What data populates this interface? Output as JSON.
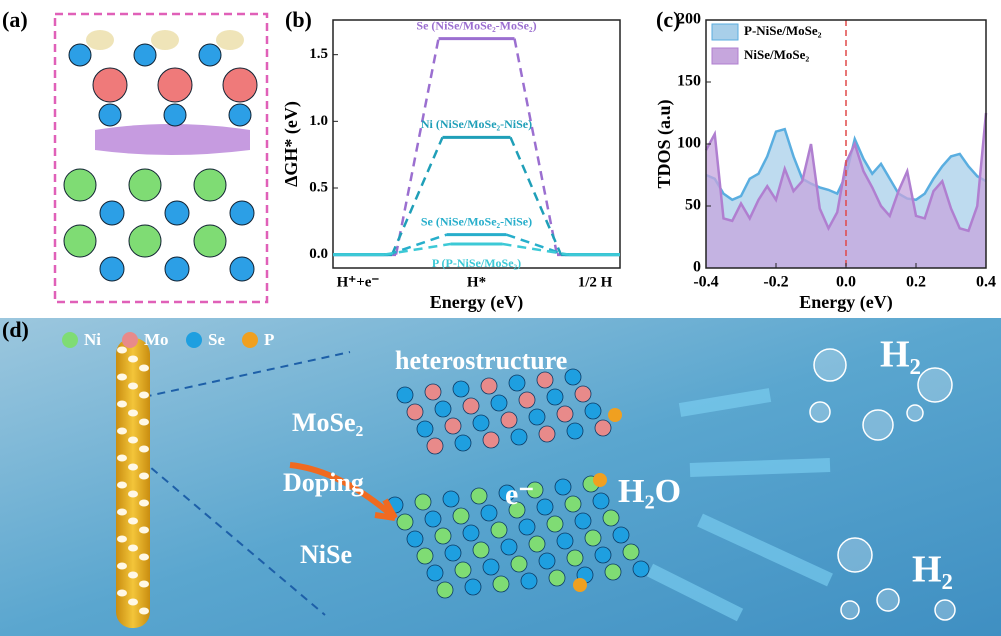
{
  "panels": [
    "(a)",
    "(b)",
    "(c)",
    "(d)"
  ],
  "chart_data": [
    {
      "type": "energy_levels",
      "categories": [
        "H⁺+e⁻",
        "H*",
        "1/2 H"
      ],
      "xlabel": "Energy (eV)",
      "ylabel": "ΔGH* (eV)",
      "ylim": [
        -0.1,
        1.76
      ],
      "yticks": [
        {
          "value": 0,
          "label": "0.0"
        },
        0.5,
        {
          "value": 1,
          "label": "1.0"
        },
        1.5
      ],
      "series": [
        {
          "name": "Se (NiSe/MoSe₂-MoSe₂)",
          "color": "#9b6fd0",
          "values": [
            0,
            1.62,
            0
          ]
        },
        {
          "name": "Ni (NiSe/MoSe₂-NiSe)",
          "color": "#1f9fb8",
          "values": [
            0,
            0.88,
            0
          ]
        },
        {
          "name": "Se (NiSe/MoSe₂-NiSe)",
          "color": "#27aecb",
          "values": [
            0,
            0.15,
            0
          ]
        },
        {
          "name": "P (P-NiSe/MoSe₂)",
          "color": "#3cc9d6",
          "values": [
            0,
            0.08,
            0
          ]
        }
      ]
    },
    {
      "type": "area",
      "xlabel": "Energy (eV)",
      "ylabel": "TDOS (a.u)",
      "xlim": [
        -0.4,
        0.4
      ],
      "ylim": [
        0,
        200
      ],
      "xticks": [
        -0.4,
        -0.2,
        {
          "value": 0,
          "label": "0.0"
        },
        0.2,
        0.4
      ],
      "yticks": [
        0,
        50,
        100,
        150,
        200
      ],
      "vline": {
        "x": 0,
        "color": "#e04848"
      },
      "legend": "upper left",
      "x": [
        -0.4,
        -0.375,
        -0.35,
        -0.325,
        -0.3,
        -0.275,
        -0.25,
        -0.225,
        -0.2,
        -0.175,
        -0.15,
        -0.125,
        -0.1,
        -0.075,
        -0.05,
        -0.025,
        0,
        0.025,
        0.05,
        0.075,
        0.1,
        0.125,
        0.15,
        0.175,
        0.2,
        0.225,
        0.25,
        0.275,
        0.3,
        0.325,
        0.35,
        0.375,
        0.4
      ],
      "series": [
        {
          "name": "P-NiSe/MoSe₂",
          "color": "#5aaee0",
          "fill": "#a8cfe9",
          "values": [
            75,
            72,
            60,
            55,
            58,
            72,
            76,
            90,
            110,
            112,
            90,
            72,
            68,
            65,
            63,
            60,
            75,
            104,
            88,
            76,
            84,
            72,
            60,
            56,
            55,
            60,
            72,
            82,
            90,
            92,
            82,
            74,
            70
          ]
        },
        {
          "name": "NiSe/MoSe₂",
          "color": "#b07fd0",
          "fill": "#c6a6dd",
          "values": [
            95,
            108,
            40,
            38,
            52,
            40,
            55,
            66,
            55,
            80,
            62,
            70,
            100,
            48,
            32,
            45,
            85,
            100,
            78,
            65,
            50,
            42,
            62,
            78,
            42,
            40,
            62,
            70,
            48,
            32,
            30,
            50,
            125
          ]
        }
      ]
    }
  ],
  "illustration": {
    "legend": [
      "Ni",
      "Mo",
      "Se",
      "P"
    ],
    "heterostructure": "heterostructure",
    "top_layer": "MoSe₂",
    "doping": "Doping",
    "bottom_layer": "NiSe",
    "electron": "e⁻",
    "water": "H₂O",
    "product_top": "H₂",
    "product_bottom": "H₂"
  }
}
